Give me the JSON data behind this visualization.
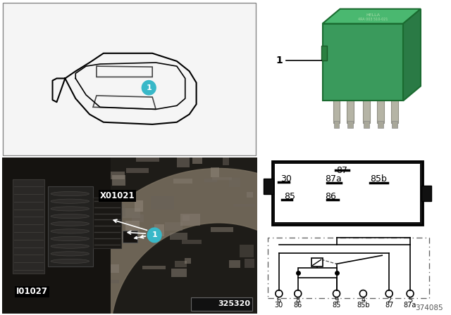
{
  "bg_color": "#ffffff",
  "relay_green": "#3a9a5c",
  "relay_dark_green": "#2a7a45",
  "relay_top_green": "#4ab870",
  "teal_color": "#38b8c8",
  "car_bg": "#f5f5f5",
  "part_number": "374085",
  "image_number": "325320",
  "pin_labels_top": [
    "87"
  ],
  "pin_labels_mid_labels": [
    "30",
    "87a",
    "85b"
  ],
  "pin_labels_bot": [
    "85",
    "86"
  ],
  "pin_numbers_row1": [
    "6",
    "8",
    "9",
    "4",
    "2",
    "5"
  ],
  "pin_numbers_row2": [
    "30",
    "86",
    "85",
    "85b",
    "87",
    "87a"
  ],
  "connector_labels": [
    "X01021",
    "I01027"
  ],
  "photo_item": "1",
  "relay_item": "1"
}
